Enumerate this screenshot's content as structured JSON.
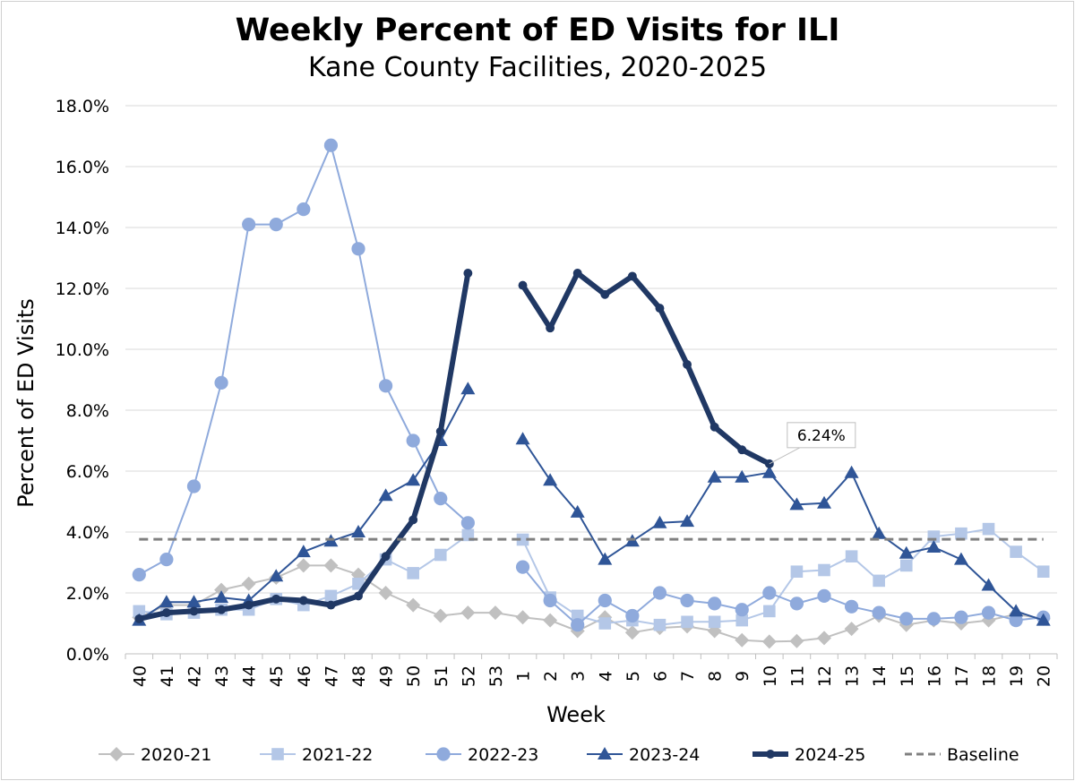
{
  "chart_data": {
    "type": "line",
    "title": "Weekly Percent of ED Visits for ILI",
    "subtitle": "Kane County Facilities, 2020-2025",
    "xlabel": "Week",
    "ylabel": "Percent of ED Visits",
    "ylim": [
      0,
      18
    ],
    "y_ticks": [
      "0.0%",
      "2.0%",
      "4.0%",
      "6.0%",
      "8.0%",
      "10.0%",
      "12.0%",
      "14.0%",
      "16.0%",
      "18.0%"
    ],
    "grid": "horizontal",
    "legend_position": "bottom",
    "categories": [
      "40",
      "41",
      "42",
      "43",
      "44",
      "45",
      "46",
      "47",
      "48",
      "49",
      "50",
      "51",
      "52",
      "53",
      "1",
      "2",
      "3",
      "4",
      "5",
      "6",
      "7",
      "8",
      "9",
      "10",
      "11",
      "12",
      "13",
      "14",
      "15",
      "16",
      "17",
      "18",
      "19",
      "20"
    ],
    "series": [
      {
        "name": "2020-21",
        "color": "#c0c0c0",
        "marker": "diamond",
        "width": 2,
        "values": [
          1.2,
          1.6,
          1.6,
          2.1,
          2.3,
          2.5,
          2.9,
          2.9,
          2.6,
          2.0,
          1.6,
          1.25,
          1.35,
          1.35,
          1.2,
          1.1,
          0.75,
          1.2,
          0.7,
          0.85,
          0.9,
          0.75,
          0.45,
          0.4,
          0.42,
          0.52,
          0.82,
          1.25,
          0.95,
          1.1,
          1.0,
          1.1,
          1.3,
          1.15
        ]
      },
      {
        "name": "2021-22",
        "color": "#b4c7e7",
        "marker": "square",
        "width": 2,
        "values": [
          1.4,
          1.3,
          1.35,
          1.45,
          1.45,
          1.8,
          1.6,
          1.9,
          2.3,
          3.1,
          2.65,
          3.25,
          3.9,
          null,
          3.75,
          1.85,
          1.25,
          1.0,
          1.1,
          0.95,
          1.05,
          1.05,
          1.1,
          1.4,
          2.7,
          2.75,
          3.2,
          2.4,
          2.9,
          3.85,
          3.95,
          4.1,
          3.35,
          2.7
        ]
      },
      {
        "name": "2022-23",
        "color": "#8faadc",
        "marker": "circle",
        "width": 2,
        "values": [
          2.6,
          3.1,
          5.5,
          8.9,
          14.1,
          14.1,
          14.6,
          16.7,
          13.3,
          8.8,
          7.0,
          5.1,
          4.3,
          null,
          2.85,
          1.75,
          0.95,
          1.75,
          1.25,
          2.0,
          1.75,
          1.65,
          1.45,
          2.0,
          1.65,
          1.9,
          1.55,
          1.35,
          1.15,
          1.15,
          1.2,
          1.35,
          1.1,
          1.2
        ]
      },
      {
        "name": "2023-24",
        "color": "#2f5597",
        "marker": "triangle",
        "width": 2,
        "values": [
          1.1,
          1.7,
          1.7,
          1.85,
          1.75,
          2.55,
          3.35,
          3.7,
          4.0,
          5.2,
          5.7,
          7.0,
          8.7,
          null,
          7.05,
          5.7,
          4.65,
          3.1,
          3.7,
          4.3,
          4.35,
          5.8,
          5.8,
          5.95,
          4.9,
          4.95,
          5.95,
          3.95,
          3.3,
          3.5,
          3.1,
          2.25,
          1.4,
          1.1
        ]
      },
      {
        "name": "2024-25",
        "color": "#203864",
        "marker": "dot",
        "width": 6,
        "values": [
          1.15,
          1.35,
          1.4,
          1.45,
          1.6,
          1.8,
          1.75,
          1.6,
          1.9,
          3.2,
          4.4,
          7.3,
          12.5,
          null,
          12.1,
          10.7,
          12.5,
          11.8,
          12.4,
          11.35,
          9.5,
          7.45,
          6.7,
          6.24,
          null,
          null,
          null,
          null,
          null,
          null,
          null,
          null,
          null,
          null
        ]
      },
      {
        "name": "Baseline",
        "color": "#808080",
        "dashed": true,
        "width": 3,
        "values": [
          3.76,
          3.76,
          3.76,
          3.76,
          3.76,
          3.76,
          3.76,
          3.76,
          3.76,
          3.76,
          3.76,
          3.76,
          3.76,
          3.76,
          3.76,
          3.76,
          3.76,
          3.76,
          3.76,
          3.76,
          3.76,
          3.76,
          3.76,
          3.76,
          3.76,
          3.76,
          3.76,
          3.76,
          3.76,
          3.76,
          3.76,
          3.76,
          3.76,
          3.76
        ]
      }
    ],
    "annotations": [
      {
        "series": "2024-25",
        "category": "10",
        "text": "6.24%"
      }
    ]
  }
}
